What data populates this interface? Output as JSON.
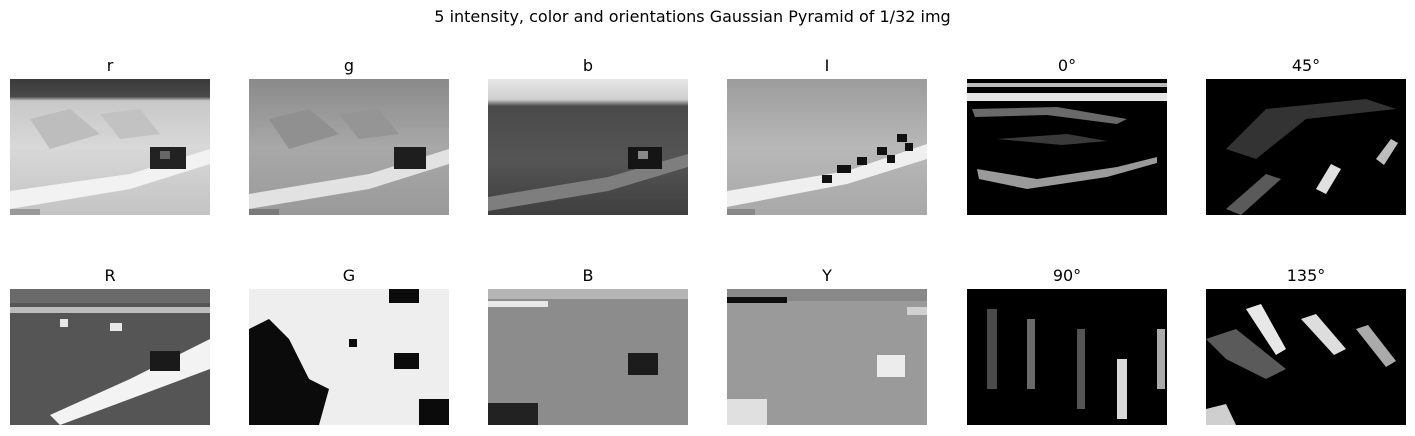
{
  "figure": {
    "title": "5 intensity, color and orientations Gaussian Pyramid of 1/32 img"
  },
  "panels": [
    {
      "id": "r",
      "title": "r",
      "kind": "r-channel"
    },
    {
      "id": "g",
      "title": "g",
      "kind": "g-channel"
    },
    {
      "id": "b",
      "title": "b",
      "kind": "b-channel"
    },
    {
      "id": "I",
      "title": "I",
      "kind": "intensity"
    },
    {
      "id": "o0",
      "title": "0°",
      "kind": "orientation-0"
    },
    {
      "id": "o45",
      "title": "45°",
      "kind": "orientation-45"
    },
    {
      "id": "R",
      "title": "R",
      "kind": "R-color"
    },
    {
      "id": "G",
      "title": "G",
      "kind": "G-color"
    },
    {
      "id": "B",
      "title": "B",
      "kind": "B-color"
    },
    {
      "id": "Y",
      "title": "Y",
      "kind": "Y-color"
    },
    {
      "id": "o90",
      "title": "90°",
      "kind": "orientation-90"
    },
    {
      "id": "o135",
      "title": "135°",
      "kind": "orientation-135"
    }
  ]
}
